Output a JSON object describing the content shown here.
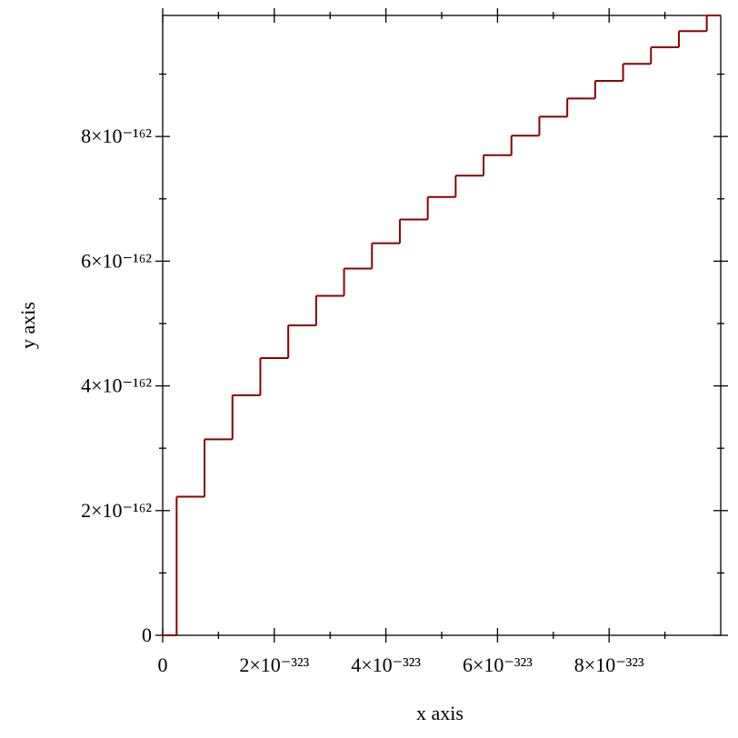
{
  "chart_data": {
    "type": "line",
    "step": "mid",
    "x_label": "x axis",
    "y_label": "y axis",
    "xlim": [
      0,
      1e-322
    ],
    "ylim": [
      0,
      9.941e-162
    ],
    "xticks": [
      0,
      {
        "value": 2e-323,
        "label": "2×10⁻³²³"
      },
      {
        "value": 4e-323,
        "label": "4×10⁻³²³"
      },
      {
        "value": 6e-323,
        "label": "6×10⁻³²³"
      },
      {
        "value": 8e-323,
        "label": "8×10⁻³²³"
      }
    ],
    "xminorticks": [
      1e-323,
      3e-323,
      5e-323,
      7e-323,
      9e-323
    ],
    "yticks": [
      0,
      {
        "value": 2e-162,
        "label": "2×10⁻¹⁶²"
      },
      {
        "value": 4e-162,
        "label": "4×10⁻¹⁶²"
      },
      {
        "value": 6e-162,
        "label": "6×10⁻¹⁶²"
      },
      {
        "value": 8e-162,
        "label": "8×10⁻¹⁶²"
      }
    ],
    "yminorticks": [
      1e-162,
      3e-162,
      5e-162,
      7e-162,
      9e-162
    ],
    "series": [
      {
        "color": "#8b0000",
        "x": [
          0,
          5e-324,
          1e-323,
          1.5e-323,
          2e-323,
          2.5e-323,
          3e-323,
          3.5e-323,
          4e-323,
          4.4e-323,
          5e-323,
          5.4e-323,
          6e-323,
          6.4e-323,
          7e-323,
          7.4e-323,
          8e-323,
          8.4e-323,
          9e-323,
          9.4e-323,
          1e-322
        ],
        "values": [
          0,
          2.223e-162,
          3.143e-162,
          3.85e-162,
          4.446e-162,
          4.97e-162,
          5.445e-162,
          5.881e-162,
          6.287e-162,
          6.668e-162,
          7.029e-162,
          7.372e-162,
          7.7e-162,
          8.014e-162,
          8.317e-162,
          8.609e-162,
          8.891e-162,
          9.165e-162,
          9.43e-162,
          9.689e-162,
          9.941e-162
        ]
      }
    ]
  }
}
